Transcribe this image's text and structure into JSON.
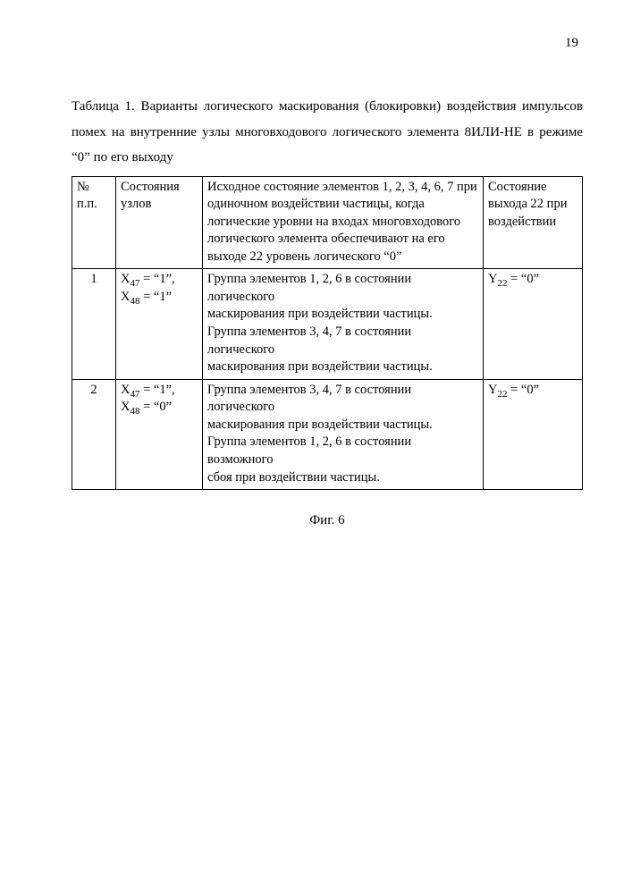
{
  "page_number": "19",
  "caption": "Таблица 1. Варианты логического маскирования (блокировки) воздействия импульсов помех на внутренние узлы многовходового логического элемента 8ИЛИ-НЕ в режиме “0” по его выходу",
  "figure_label": "Фиг. 6",
  "table": {
    "headers": {
      "c0a": "№",
      "c0b": "п.п.",
      "c1a": "Состояния",
      "c1b": "узлов",
      "c2": "Исходное состояние элементов 1, 2, 3, 4, 6, 7 при одиночном воздействии частицы, когда логические уровни на входах многовходового логического элемента обеспечивают на его выходе 22 уровень логического “0”",
      "c3a": "Состояние",
      "c3b": "выхода 22 при",
      "c3c": "воздействии"
    },
    "rows": [
      {
        "num": "1",
        "c1_l1_pre": "X",
        "c1_l1_sub": "47",
        "c1_l1_post": " = “1”,",
        "c1_l2_pre": "X",
        "c1_l2_sub": "48",
        "c1_l2_post": " = “1”",
        "c2_l1": "Группа элементов 1, 2, 6 в состоянии логического",
        "c2_l2": "маскирования при воздействии частицы.",
        "c2_l3": "Группа элементов 3, 4, 7 в состоянии логического",
        "c2_l4": "маскирования при воздействии частицы.",
        "c3_pre": "Y",
        "c3_sub": "22",
        "c3_post": " = “0”"
      },
      {
        "num": "2",
        "c1_l1_pre": "X",
        "c1_l1_sub": "47",
        "c1_l1_post": " = “1”,",
        "c1_l2_pre": "X",
        "c1_l2_sub": "48",
        "c1_l2_post": " = “0”",
        "c2_l1": "Группа элементов 3, 4, 7 в состоянии логического",
        "c2_l2": "маскирования при воздействии частицы.",
        "c2_l3": "Группа элементов 1, 2, 6 в состоянии возможного",
        "c2_l4": "сбоя при воздействии частицы.",
        "c3_pre": "Y",
        "c3_sub": "22",
        "c3_post": " = “0”"
      }
    ]
  }
}
